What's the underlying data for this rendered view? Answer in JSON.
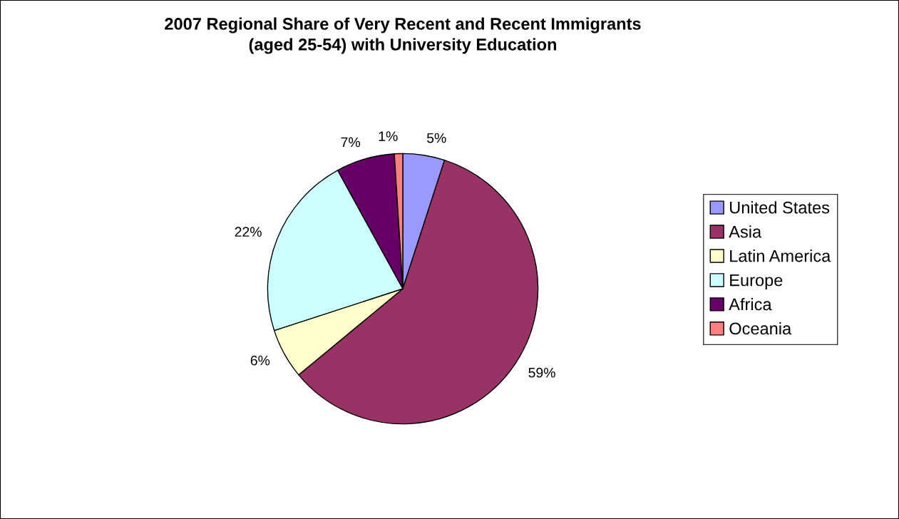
{
  "chart_data": {
    "type": "pie",
    "title": "2007 Regional Share of Very Recent and Recent Immigrants\n(aged 25-54) with University Education",
    "categories": [
      "United States",
      "Asia",
      "Latin America",
      "Europe",
      "Africa",
      "Oceania"
    ],
    "values": [
      5,
      59,
      6,
      22,
      7,
      1
    ],
    "value_labels": [
      "5%",
      "59%",
      "6%",
      "22%",
      "7%",
      "1%"
    ],
    "colors": [
      "#9999ff",
      "#993366",
      "#ffffcc",
      "#ccffff",
      "#660066",
      "#ff8080"
    ],
    "legend": "right"
  }
}
